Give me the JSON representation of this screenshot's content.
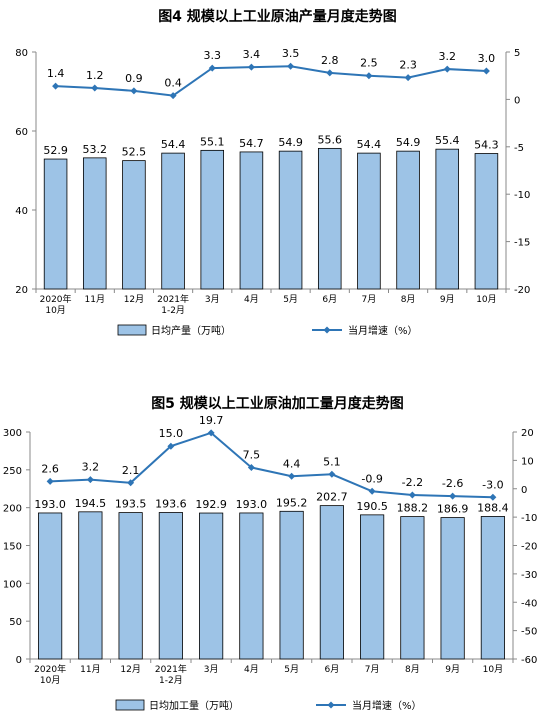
{
  "chart_data": [
    {
      "type": "bar",
      "title": "图4 规模以上工业原油产量月度走势图",
      "categories": [
        "2020年\n10月",
        "11月",
        "12月",
        "2021年\n1-2月",
        "3月",
        "4月",
        "5月",
        "6月",
        "7月",
        "8月",
        "9月",
        "10月"
      ],
      "ylim": [
        20,
        80
      ],
      "y_ticks": [
        20,
        40,
        60,
        80
      ],
      "y2lim": [
        -20,
        5
      ],
      "y2_ticks": [
        5,
        0,
        -5,
        -10,
        -15,
        -20
      ],
      "series": [
        {
          "name": "日均产量（万吨）",
          "type": "bar",
          "axis": "left",
          "values": [
            52.9,
            53.2,
            52.5,
            54.4,
            55.1,
            54.7,
            54.9,
            55.6,
            54.4,
            54.9,
            55.4,
            54.3
          ],
          "labels": [
            "52.9",
            "53.2",
            "52.5",
            "54.4",
            "55.1",
            "54.7",
            "54.9",
            "55.6",
            "54.4",
            "54.9",
            "55.4",
            "54.3"
          ]
        },
        {
          "name": "当月增速（%）",
          "type": "line",
          "axis": "right",
          "values": [
            1.4,
            1.2,
            0.9,
            0.4,
            3.3,
            3.4,
            3.5,
            2.8,
            2.5,
            2.3,
            3.2,
            3.0
          ],
          "labels": [
            "1.4",
            "1.2",
            "0.9",
            "0.4",
            "3.3",
            "3.4",
            "3.5",
            "2.8",
            "2.5",
            "2.3",
            "3.2",
            "3.0"
          ]
        }
      ],
      "bar_color": "#9dc3e6",
      "line_color": "#2e75b6",
      "legend": "bottom"
    },
    {
      "type": "bar",
      "title": "图5 规模以上工业原油加工量月度走势图",
      "categories": [
        "2020年\n10月",
        "11月",
        "12月",
        "2021年\n1-2月",
        "3月",
        "4月",
        "5月",
        "6月",
        "7月",
        "8月",
        "9月",
        "10月"
      ],
      "ylim": [
        0,
        300
      ],
      "y_ticks": [
        0,
        50,
        100,
        150,
        200,
        250,
        300
      ],
      "y2lim": [
        -60,
        20
      ],
      "y2_ticks": [
        20,
        10,
        0,
        -10,
        -20,
        -30,
        -40,
        -50,
        -60
      ],
      "series": [
        {
          "name": "日均加工量（万吨）",
          "type": "bar",
          "axis": "left",
          "values": [
            193.0,
            194.5,
            193.5,
            193.6,
            192.9,
            193.0,
            195.2,
            202.7,
            190.5,
            188.2,
            186.9,
            188.4
          ],
          "labels": [
            "193.0",
            "194.5",
            "193.5",
            "193.6",
            "192.9",
            "193.0",
            "195.2",
            "202.7",
            "190.5",
            "188.2",
            "186.9",
            "188.4"
          ]
        },
        {
          "name": "当月增速（%）",
          "type": "line",
          "axis": "right",
          "values": [
            2.6,
            3.2,
            2.1,
            15.0,
            19.7,
            7.5,
            4.4,
            5.1,
            -0.9,
            -2.2,
            -2.6,
            -3.0
          ],
          "labels": [
            "2.6",
            "3.2",
            "2.1",
            "15.0",
            "19.7",
            "7.5",
            "4.4",
            "5.1",
            "-0.9",
            "-2.2",
            "-2.6",
            "-3.0"
          ]
        }
      ],
      "bar_color": "#9dc3e6",
      "line_color": "#2e75b6",
      "legend": "bottom"
    }
  ]
}
